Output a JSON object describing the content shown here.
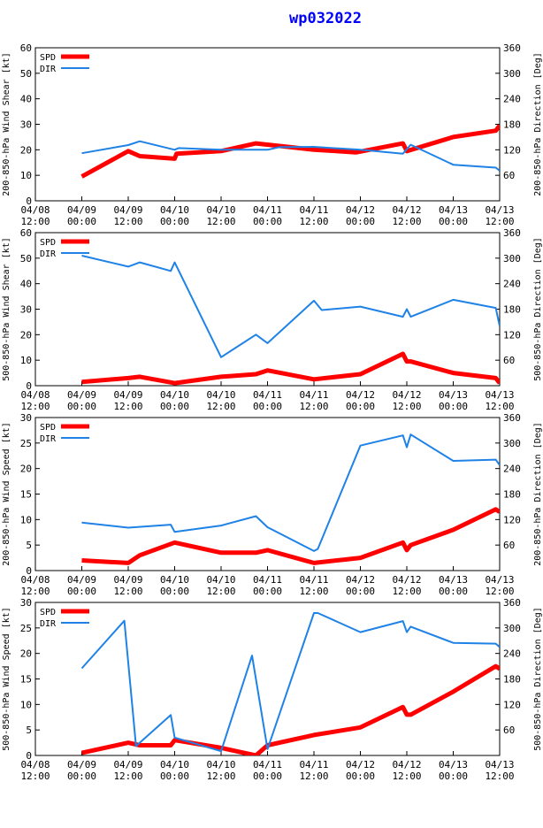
{
  "title": "wp032022",
  "colors": {
    "spd": "#ff0000",
    "dir": "#1e82e6",
    "title": "#0000ff",
    "axis": "#000000"
  },
  "x_ticks": [
    {
      "date": "04/08",
      "time": "12:00"
    },
    {
      "date": "04/09",
      "time": "00:00"
    },
    {
      "date": "04/09",
      "time": "12:00"
    },
    {
      "date": "04/10",
      "time": "00:00"
    },
    {
      "date": "04/10",
      "time": "12:00"
    },
    {
      "date": "04/11",
      "time": "00:00"
    },
    {
      "date": "04/11",
      "time": "12:00"
    },
    {
      "date": "04/12",
      "time": "00:00"
    },
    {
      "date": "04/12",
      "time": "12:00"
    },
    {
      "date": "04/13",
      "time": "00:00"
    },
    {
      "date": "04/13",
      "time": "12:00"
    }
  ],
  "chart_data": [
    {
      "type": "line",
      "ylabel_left": "200-850-hPa Wind Shear [kt]",
      "ylabel_right": "200-850-hPa Direction [Deg]",
      "ylim_left": [
        0,
        60
      ],
      "yticks_left": [
        0,
        10,
        20,
        30,
        40,
        50,
        60
      ],
      "ylim_right": [
        0,
        360
      ],
      "yticks_right": [
        60,
        120,
        180,
        240,
        300,
        360
      ],
      "x_range_hours": [
        0,
        120
      ],
      "legend": [
        "SPD",
        "DIR"
      ],
      "series": [
        {
          "name": "SPD",
          "axis": "left",
          "x": [
            12,
            24,
            27,
            36,
            36.5,
            48,
            57,
            66,
            72,
            83,
            95,
            96,
            108,
            119,
            120
          ],
          "y": [
            9.5,
            19.5,
            17.5,
            16.5,
            18.5,
            19.5,
            22.5,
            21,
            20,
            19,
            22.5,
            19.5,
            25,
            27.5,
            29.5
          ]
        },
        {
          "name": "DIR",
          "axis": "right",
          "x": [
            12,
            24,
            27,
            36,
            37,
            48,
            60,
            63,
            72,
            84,
            95,
            97,
            108,
            119,
            120
          ],
          "y": [
            112,
            131,
            140,
            120,
            124,
            120,
            120,
            126,
            127,
            120,
            111,
            132,
            85,
            78,
            71
          ]
        }
      ]
    },
    {
      "type": "line",
      "ylabel_left": "500-850-hPa Wind Shear [kt]",
      "ylabel_right": "500-850-hPa Direction [Deg]",
      "ylim_left": [
        0,
        60
      ],
      "yticks_left": [
        0,
        10,
        20,
        30,
        40,
        50,
        60
      ],
      "ylim_right": [
        0,
        360
      ],
      "yticks_right": [
        60,
        120,
        180,
        240,
        300,
        360
      ],
      "x_range_hours": [
        0,
        120
      ],
      "legend": [
        "SPD",
        "DIR"
      ],
      "series": [
        {
          "name": "SPD",
          "axis": "left",
          "x": [
            12,
            24,
            27,
            36,
            48,
            57,
            60,
            72,
            84,
            95,
            96,
            97,
            108,
            119,
            120
          ],
          "y": [
            1.5,
            3,
            3.5,
            1,
            3.5,
            4.5,
            6,
            2.5,
            4.5,
            12.5,
            9.5,
            9.5,
            5,
            3,
            1
          ]
        },
        {
          "name": "DIR",
          "axis": "right",
          "x": [
            12,
            24,
            27,
            35,
            36,
            48,
            57,
            60,
            72,
            74,
            84,
            95,
            96,
            97,
            108,
            119,
            120
          ],
          "y": [
            306,
            280,
            290,
            270,
            290,
            67,
            120,
            100,
            200,
            178,
            186,
            162,
            180,
            162,
            202,
            183,
            140
          ]
        }
      ]
    },
    {
      "type": "line",
      "ylabel_left": "200-850-hPa Wind Speed [kt]",
      "ylabel_right": "200-850-hPa Direction [Deg]",
      "ylim_left": [
        0,
        30
      ],
      "yticks_left": [
        0,
        5,
        10,
        15,
        20,
        25,
        30
      ],
      "ylim_right": [
        0,
        360
      ],
      "yticks_right": [
        60,
        120,
        180,
        240,
        300,
        360
      ],
      "x_range_hours": [
        0,
        120
      ],
      "legend": [
        "SPD",
        "DIR"
      ],
      "series": [
        {
          "name": "SPD",
          "axis": "left",
          "x": [
            12,
            24,
            27,
            36,
            48,
            57,
            60,
            72,
            84,
            95,
            96,
            97,
            108,
            119,
            120
          ],
          "y": [
            2,
            1.5,
            3,
            5.5,
            3.5,
            3.5,
            4,
            1.5,
            2.5,
            5.5,
            4,
            5,
            8,
            12,
            11.5
          ]
        },
        {
          "name": "DIR",
          "axis": "right",
          "x": [
            12,
            24,
            35,
            36,
            48,
            57,
            60,
            72,
            73,
            84,
            95,
            96,
            97,
            108,
            119,
            120
          ],
          "y": [
            113,
            101,
            108,
            91,
            106,
            128,
            102,
            46,
            51,
            294,
            318,
            290,
            320,
            258,
            261,
            248
          ]
        }
      ]
    },
    {
      "type": "line",
      "ylabel_left": "500-850-hPa Wind Speed [kt]",
      "ylabel_right": "500-850-hPa Direction [Deg]",
      "ylim_left": [
        0,
        30
      ],
      "yticks_left": [
        0,
        5,
        10,
        15,
        20,
        25,
        30
      ],
      "ylim_right": [
        0,
        360
      ],
      "yticks_right": [
        60,
        120,
        180,
        240,
        300,
        360
      ],
      "x_range_hours": [
        0,
        120
      ],
      "legend": [
        "SPD",
        "DIR"
      ],
      "series": [
        {
          "name": "SPD",
          "axis": "left",
          "x": [
            12,
            24,
            27,
            35,
            36,
            48,
            57,
            60,
            72,
            84,
            95,
            96,
            97,
            108,
            119,
            120
          ],
          "y": [
            0.5,
            2.5,
            2,
            2,
            3,
            1.5,
            0,
            2,
            4,
            5.5,
            9.5,
            8,
            8,
            12.5,
            17.5,
            17
          ]
        },
        {
          "name": "DIR",
          "axis": "right",
          "x": [
            12,
            23,
            26,
            35,
            36,
            48,
            56,
            60,
            72,
            73,
            84,
            95,
            96,
            97,
            108,
            119,
            120
          ],
          "y": [
            205,
            317,
            22,
            95,
            42,
            10,
            235,
            15,
            335,
            335,
            290,
            316,
            290,
            303,
            265,
            263,
            255
          ]
        }
      ]
    }
  ]
}
